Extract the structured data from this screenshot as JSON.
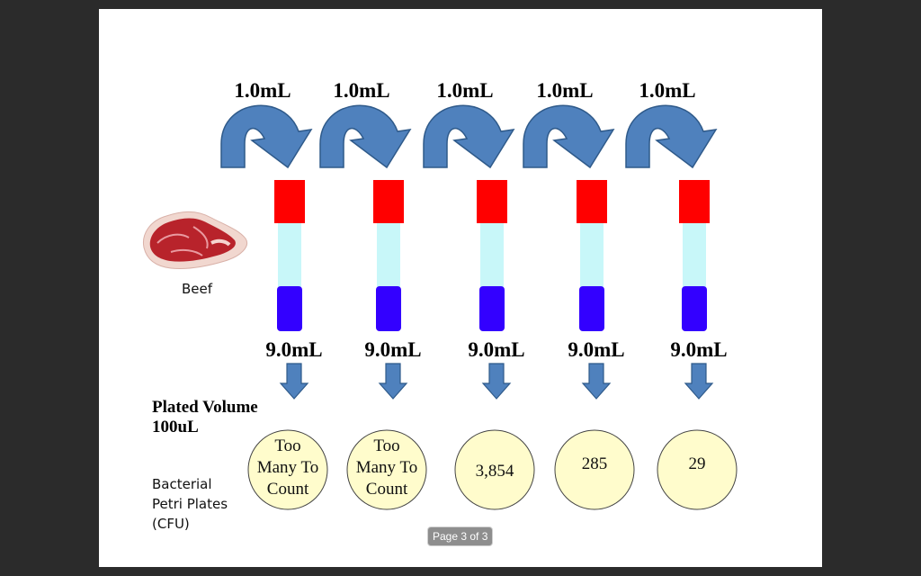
{
  "transfer_volume": "1.0mL",
  "diluent_volume": "9.0mL",
  "sample_label": "Beef",
  "plated_volume_label": [
    "Plated Volume",
    "100uL"
  ],
  "plates_label": [
    "Bacterial",
    "Petri Plates",
    "(CFU)"
  ],
  "tube_count": 5,
  "colors": {
    "arrow": "#4f81bd",
    "arrow_stroke": "#2f5a8a",
    "cap": "#ff0000",
    "liquid_light": "#c8f7f9",
    "liquid_dark": "#3300ff",
    "plate_fill": "#fffccc",
    "meat": "#b8232b"
  },
  "plates": [
    {
      "lines": [
        "Too",
        "Many To",
        "Count"
      ]
    },
    {
      "lines": [
        "Too",
        "Many To",
        "Count"
      ]
    },
    {
      "lines": [
        "3,854"
      ]
    },
    {
      "lines": [
        "285"
      ]
    },
    {
      "lines": [
        "29"
      ]
    }
  ],
  "page_indicator": "Page 3 of 3"
}
